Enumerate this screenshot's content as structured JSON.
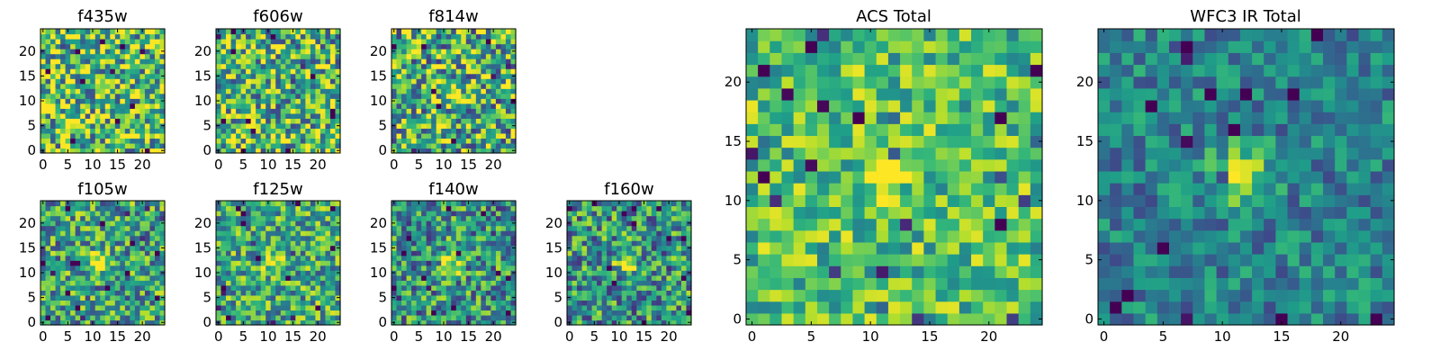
{
  "chart_data": [
    {
      "id": "f435w",
      "type": "heatmap",
      "title": "f435w",
      "grid_size": 25,
      "colormap": "viridis",
      "xticks": [
        "0",
        "5",
        "10",
        "15",
        "20"
      ],
      "yticks": [
        "0",
        "5",
        "10",
        "15",
        "20"
      ],
      "xlim": [
        0,
        25
      ],
      "ylim": [
        0,
        25
      ],
      "source_peak": 0.0,
      "noise": 0.9,
      "base": 0.68,
      "seed": 11
    },
    {
      "id": "f606w",
      "type": "heatmap",
      "title": "f606w",
      "grid_size": 25,
      "colormap": "viridis",
      "xticks": [
        "0",
        "5",
        "10",
        "15",
        "20"
      ],
      "yticks": [
        "0",
        "5",
        "10",
        "15",
        "20"
      ],
      "xlim": [
        0,
        25
      ],
      "ylim": [
        0,
        25
      ],
      "source_peak": 0.1,
      "noise": 0.9,
      "base": 0.66,
      "seed": 23
    },
    {
      "id": "f814w",
      "type": "heatmap",
      "title": "f814w",
      "grid_size": 25,
      "colormap": "viridis",
      "xticks": [
        "0",
        "5",
        "10",
        "15",
        "20"
      ],
      "yticks": [
        "0",
        "5",
        "10",
        "15",
        "20"
      ],
      "xlim": [
        0,
        25
      ],
      "ylim": [
        0,
        25
      ],
      "source_peak": 0.3,
      "noise": 0.9,
      "base": 0.62,
      "seed": 37
    },
    {
      "id": "f105w",
      "type": "heatmap",
      "title": "f105w",
      "grid_size": 25,
      "colormap": "viridis",
      "xticks": [
        "0",
        "5",
        "10",
        "15",
        "20"
      ],
      "yticks": [
        "0",
        "5",
        "10",
        "15",
        "20"
      ],
      "xlim": [
        0,
        25
      ],
      "ylim": [
        0,
        25
      ],
      "source_peak": 0.45,
      "noise": 0.75,
      "base": 0.56,
      "seed": 41
    },
    {
      "id": "f125w",
      "type": "heatmap",
      "title": "f125w",
      "grid_size": 25,
      "colormap": "viridis",
      "xticks": [
        "0",
        "5",
        "10",
        "15",
        "20"
      ],
      "yticks": [
        "0",
        "5",
        "10",
        "15",
        "20"
      ],
      "xlim": [
        0,
        25
      ],
      "ylim": [
        0,
        25
      ],
      "source_peak": 0.4,
      "noise": 0.7,
      "base": 0.6,
      "seed": 53
    },
    {
      "id": "f140w",
      "type": "heatmap",
      "title": "f140w",
      "grid_size": 25,
      "colormap": "viridis",
      "xticks": [
        "0",
        "5",
        "10",
        "15",
        "20"
      ],
      "yticks": [
        "0",
        "5",
        "10",
        "15",
        "20"
      ],
      "xlim": [
        0,
        25
      ],
      "ylim": [
        0,
        25
      ],
      "source_peak": 0.5,
      "noise": 0.75,
      "base": 0.52,
      "seed": 67
    },
    {
      "id": "f160w",
      "type": "heatmap",
      "title": "f160w",
      "grid_size": 25,
      "colormap": "viridis",
      "xticks": [
        "0",
        "5",
        "10",
        "15",
        "20"
      ],
      "yticks": [
        "0",
        "5",
        "10",
        "15",
        "20"
      ],
      "xlim": [
        0,
        25
      ],
      "ylim": [
        0,
        25
      ],
      "source_peak": 0.5,
      "noise": 0.75,
      "base": 0.52,
      "seed": 79
    },
    {
      "id": "acs-total",
      "type": "heatmap",
      "title": "ACS Total",
      "grid_size": 25,
      "colormap": "viridis",
      "xticks": [
        "0",
        "5",
        "10",
        "15",
        "20"
      ],
      "yticks": [
        "0",
        "5",
        "10",
        "15",
        "20"
      ],
      "xlim": [
        0,
        25
      ],
      "ylim": [
        0,
        25
      ],
      "source_peak": 0.3,
      "noise": 0.55,
      "base": 0.7,
      "seed": 91
    },
    {
      "id": "wfc3-ir-total",
      "type": "heatmap",
      "title": "WFC3 IR Total",
      "grid_size": 25,
      "colormap": "viridis",
      "xticks": [
        "0",
        "5",
        "10",
        "15",
        "20"
      ],
      "yticks": [
        "0",
        "5",
        "10",
        "15",
        "20"
      ],
      "xlim": [
        0,
        25
      ],
      "ylim": [
        0,
        25
      ],
      "source_peak": 0.55,
      "noise": 0.45,
      "base": 0.44,
      "seed": 103
    }
  ]
}
